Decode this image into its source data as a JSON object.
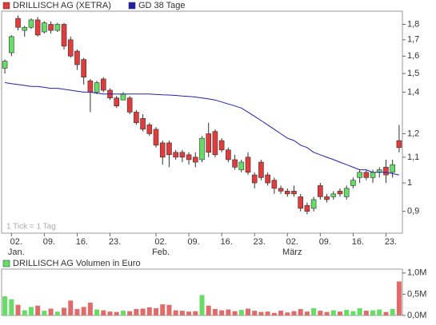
{
  "chart_data": [
    {
      "type": "candlestick",
      "annotation": "1 Tick = 1 Tag",
      "log_scale": true,
      "categories": [
        null,
        "02.",
        null,
        null,
        null,
        null,
        "09.",
        null,
        null,
        null,
        null,
        "16.",
        null,
        null,
        null,
        null,
        "23.",
        null,
        null,
        null,
        null,
        null,
        null,
        "02.",
        null,
        null,
        null,
        null,
        "09.",
        null,
        null,
        null,
        null,
        "16.",
        null,
        null,
        null,
        null,
        "23.",
        null,
        null,
        null,
        null,
        "02.",
        null,
        null,
        null,
        null,
        "09.",
        null,
        null,
        null,
        null,
        "16.",
        null,
        null,
        null,
        null,
        "23.",
        null,
        null
      ],
      "months": [
        null,
        "Jan.",
        null,
        null,
        null,
        null,
        null,
        null,
        null,
        null,
        null,
        null,
        null,
        null,
        null,
        null,
        null,
        null,
        null,
        null,
        null,
        null,
        null,
        "Feb.",
        null,
        null,
        null,
        null,
        null,
        null,
        null,
        null,
        null,
        null,
        null,
        null,
        null,
        null,
        null,
        null,
        null,
        null,
        null,
        "März",
        null,
        null,
        null,
        null,
        null,
        null,
        null,
        null,
        null,
        null,
        null,
        null,
        null,
        null,
        null,
        null,
        null
      ],
      "ylim": [
        0.83,
        1.89
      ],
      "yticks": [
        {
          "value": 0.9,
          "label": "0,9"
        },
        1,
        {
          "value": 1.1,
          "label": "1,1"
        },
        {
          "value": 1.2,
          "label": "1,2"
        },
        {
          "value": 1.4,
          "label": "1,4"
        },
        {
          "value": 1.5,
          "label": "1,5"
        },
        {
          "value": 1.6,
          "label": "1,6"
        },
        {
          "value": 1.7,
          "label": "1,7"
        },
        {
          "value": 1.8,
          "label": "1,8"
        }
      ],
      "series": [
        {
          "name": "DRILLISCH AG (XETRA)",
          "color": "#e03c3c",
          "up_color": "#66dd66",
          "down_color": "#e03c3c",
          "open": [
            1.53,
            1.62,
            1.84,
            1.76,
            1.78,
            1.83,
            1.75,
            1.8,
            1.76,
            1.8,
            1.7,
            1.63,
            1.58,
            1.46,
            1.4,
            1.47,
            1.41,
            1.37,
            1.36,
            1.37,
            1.3,
            1.27,
            1.24,
            1.22,
            1.16,
            1.16,
            1.12,
            1.12,
            1.11,
            1.1,
            1.09,
            1.2,
            1.21,
            1.17,
            1.13,
            1.09,
            1.05,
            1.1,
            1.03,
            1.08,
            1.03,
            1.01,
            0.98,
            0.97,
            0.97,
            0.95,
            0.92,
            0.91,
            0.99,
            0.95,
            0.95,
            0.97,
            0.95,
            0.99,
            1.02,
            1.04,
            1.02,
            1.04,
            1.06,
            1.04,
            1.17
          ],
          "high": [
            1.58,
            1.73,
            1.86,
            1.79,
            1.84,
            1.85,
            1.82,
            1.82,
            1.81,
            1.81,
            1.72,
            1.64,
            1.59,
            1.47,
            1.46,
            1.48,
            1.42,
            1.38,
            1.4,
            1.38,
            1.31,
            1.29,
            1.25,
            1.23,
            1.17,
            1.17,
            1.13,
            1.13,
            1.12,
            1.12,
            1.19,
            1.25,
            1.22,
            1.18,
            1.14,
            1.11,
            1.09,
            1.12,
            1.04,
            1.09,
            1.04,
            1.02,
            0.99,
            0.98,
            0.99,
            0.96,
            0.93,
            0.95,
            1.0,
            0.96,
            0.97,
            0.98,
            0.99,
            1.02,
            1.05,
            1.05,
            1.05,
            1.06,
            1.09,
            1.09,
            1.24
          ],
          "low": [
            1.5,
            1.6,
            1.76,
            1.72,
            1.77,
            1.72,
            1.74,
            1.74,
            1.75,
            1.64,
            1.59,
            1.52,
            1.44,
            1.3,
            1.39,
            1.4,
            1.36,
            1.32,
            1.36,
            1.29,
            1.24,
            1.21,
            1.19,
            1.14,
            1.07,
            1.06,
            1.09,
            1.08,
            1.07,
            1.06,
            1.08,
            1.1,
            1.1,
            1.12,
            1.08,
            1.05,
            1.04,
            1.03,
            0.98,
            1.01,
            0.99,
            0.96,
            0.96,
            0.95,
            0.95,
            0.9,
            0.89,
            0.9,
            0.94,
            0.93,
            0.94,
            0.95,
            0.94,
            0.98,
            1.0,
            1.01,
            1.0,
            1.02,
            1.0,
            1.02,
            1.12
          ],
          "close": [
            1.57,
            1.72,
            1.78,
            1.78,
            1.83,
            1.73,
            1.81,
            1.76,
            1.8,
            1.66,
            1.6,
            1.55,
            1.48,
            1.4,
            1.45,
            1.41,
            1.37,
            1.33,
            1.39,
            1.3,
            1.25,
            1.22,
            1.2,
            1.15,
            1.1,
            1.11,
            1.1,
            1.1,
            1.09,
            1.08,
            1.18,
            1.12,
            1.11,
            1.13,
            1.09,
            1.06,
            1.08,
            1.04,
            1.0,
            1.02,
            1.0,
            0.98,
            0.97,
            0.96,
            0.96,
            0.91,
            0.9,
            0.94,
            0.95,
            0.94,
            0.96,
            0.96,
            0.98,
            1.01,
            1.04,
            1.02,
            1.04,
            1.05,
            1.03,
            1.07,
            1.14
          ]
        },
        {
          "name": "GD 38 Tage",
          "color": "#2020b0",
          "type": "line",
          "values": [
            1.45,
            1.445,
            1.44,
            1.435,
            1.43,
            1.43,
            1.425,
            1.42,
            1.42,
            1.415,
            1.41,
            1.405,
            1.4,
            1.4,
            1.395,
            1.39,
            1.39,
            1.39,
            1.39,
            1.39,
            1.39,
            1.39,
            1.39,
            1.388,
            1.386,
            1.385,
            1.383,
            1.38,
            1.378,
            1.375,
            1.37,
            1.365,
            1.36,
            1.35,
            1.34,
            1.33,
            1.32,
            1.3,
            1.28,
            1.26,
            1.24,
            1.22,
            1.2,
            1.18,
            1.17,
            1.15,
            1.14,
            1.12,
            1.11,
            1.1,
            1.09,
            1.08,
            1.07,
            1.06,
            1.05,
            1.05,
            1.04,
            1.04,
            1.04,
            1.035,
            1.03
          ]
        }
      ]
    },
    {
      "type": "bar",
      "ylim": [
        0,
        1090000
      ],
      "yticks": [
        {
          "value": 0,
          "label": "0,0M"
        },
        {
          "value": 500000,
          "label": "0,5M"
        },
        {
          "value": 1000000,
          "label": "1,0M"
        }
      ],
      "series": [
        {
          "name": "DRILLISCH AG Volumen in Euro",
          "color": "#66dd66",
          "values": [
            450000,
            380000,
            250000,
            120000,
            200000,
            230000,
            110000,
            160000,
            90000,
            180000,
            350000,
            150000,
            200000,
            300000,
            140000,
            120000,
            90000,
            80000,
            110000,
            100000,
            150000,
            160000,
            190000,
            170000,
            260000,
            250000,
            120000,
            110000,
            90000,
            100000,
            480000,
            230000,
            150000,
            120000,
            140000,
            100000,
            130000,
            160000,
            110000,
            80000,
            90000,
            60000,
            110000,
            70000,
            100000,
            150000,
            90000,
            170000,
            110000,
            80000,
            120000,
            90000,
            130000,
            100000,
            170000,
            110000,
            120000,
            140000,
            80000,
            150000,
            800000
          ]
        }
      ]
    }
  ]
}
